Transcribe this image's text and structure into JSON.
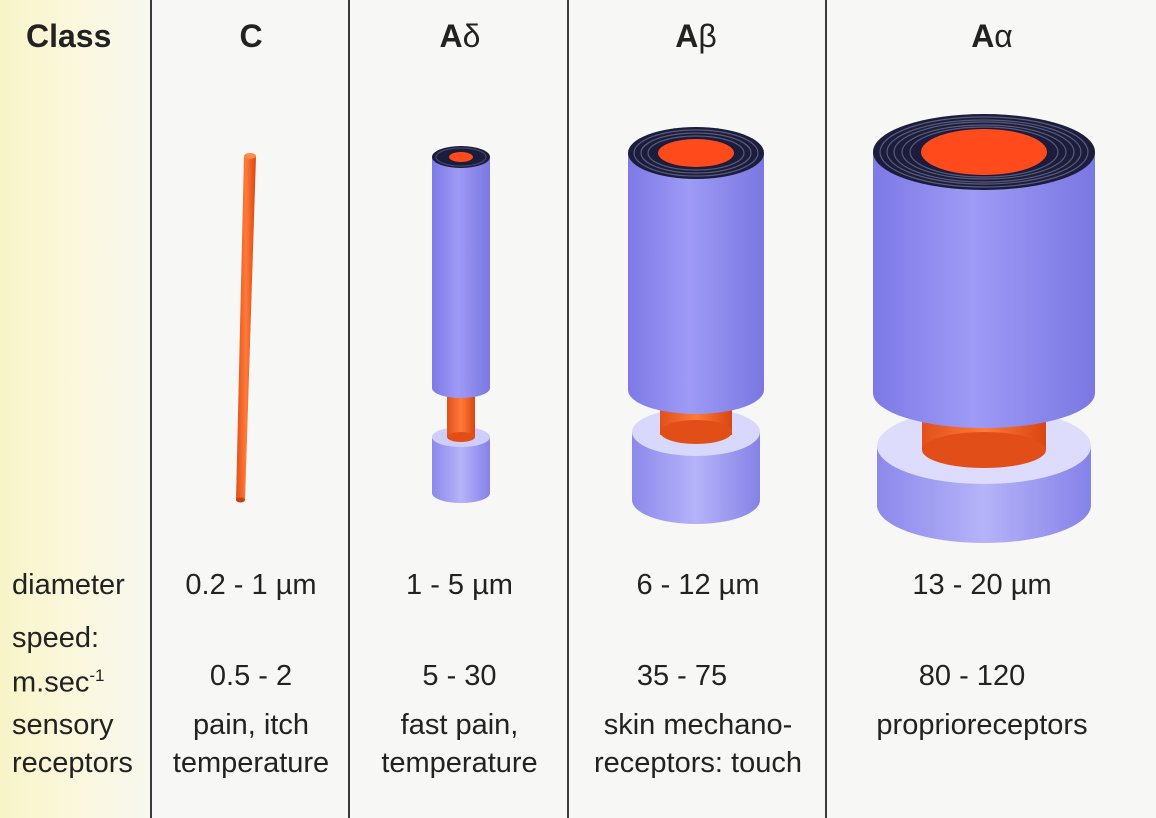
{
  "row_labels": {
    "class": "Class",
    "diameter": "diameter",
    "speed_line1": "speed:",
    "speed_line2": "m.sec",
    "speed_exp": "-1",
    "sensory_line1": "sensory",
    "sensory_line2": "receptors"
  },
  "classes": [
    {
      "prefix": "",
      "letter": "C",
      "diameter": "0.2 - 1 µm",
      "speed": "0.5 - 2",
      "receptors_line1": "pain, itch",
      "receptors_line2": "temperature"
    },
    {
      "prefix": "A",
      "letter": "δ",
      "diameter": "1 - 5 µm",
      "speed": "5 - 30",
      "receptors_line1": "fast pain,",
      "receptors_line2": "temperature"
    },
    {
      "prefix": "A",
      "letter": "β",
      "diameter": "6 - 12 µm",
      "speed": "35 - 75",
      "receptors_line1": "skin mechano-",
      "receptors_line2": "receptors: touch"
    },
    {
      "prefix": "A",
      "letter": "α",
      "diameter": "13 - 20 µm",
      "speed": "80 - 120",
      "receptors_line1": "proprioreceptors",
      "receptors_line2": ""
    }
  ],
  "colors": {
    "axon": "#ff4a1c",
    "myelin": "#8f8cf0",
    "myelin_ring": "#1c1c3c",
    "label_bg": "#fbf8df"
  }
}
